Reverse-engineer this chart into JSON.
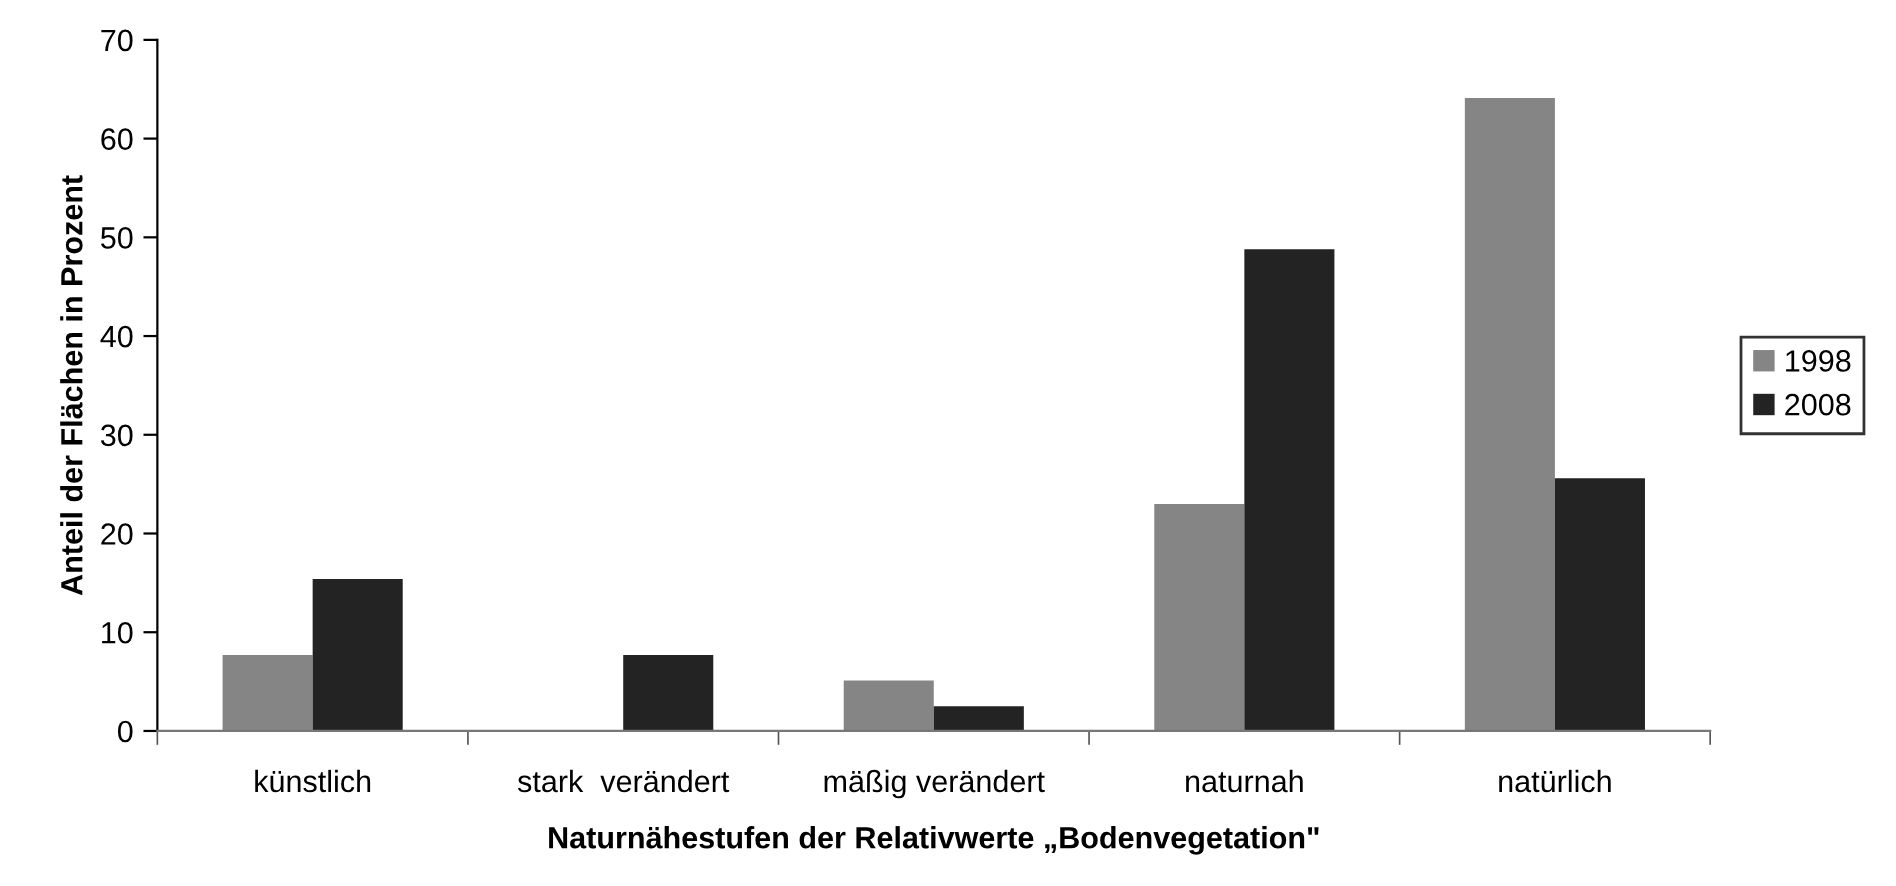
{
  "chart_data": {
    "type": "bar",
    "xlabel": "Naturnähestufen der Relativwerte „Bodenvegetation\"",
    "ylabel": "Anteil der Flächen in Prozent",
    "categories": [
      "künstlich",
      "stark  verändert",
      "mäßig verändert",
      "naturnah",
      "natürlich"
    ],
    "series": [
      {
        "name": "1998",
        "color": "#858585",
        "values": [
          7.7,
          0,
          5.1,
          23.0,
          64.1
        ]
      },
      {
        "name": "2008",
        "color": "#232323",
        "values": [
          15.4,
          7.7,
          2.5,
          48.8,
          25.6
        ]
      }
    ],
    "ylim": [
      0,
      70
    ],
    "yticks": [
      0,
      10,
      20,
      30,
      40,
      50,
      60,
      70
    ],
    "grid": false,
    "legend": "right"
  }
}
